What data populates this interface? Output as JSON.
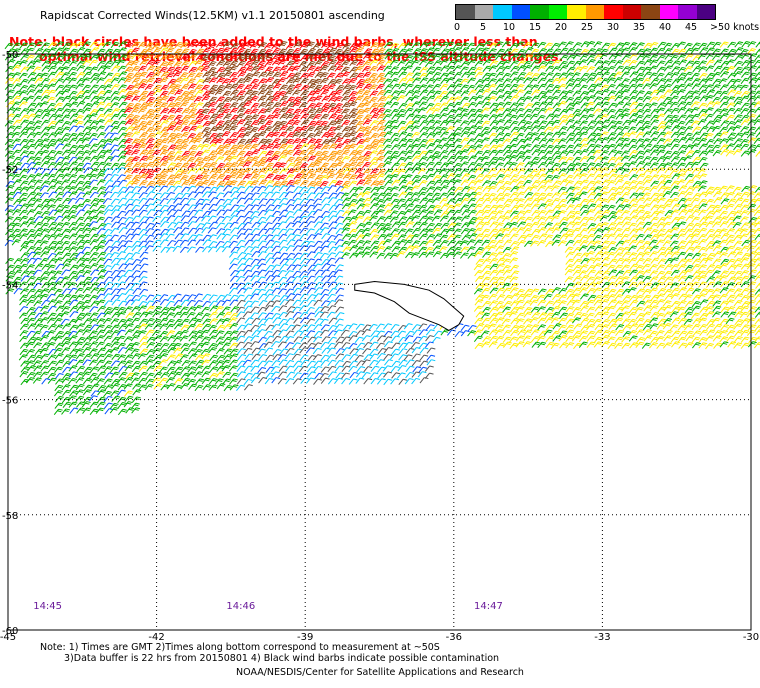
{
  "title": "Rapidscat Corrected Winds(12.5KM) v1.1 20150801 ascending",
  "note": {
    "line1": "Note: black circles have been added to the wind barbs, wherever less than",
    "line2": "optimal wind retrieval conditions are met due to the ISS altitude changes."
  },
  "legend": {
    "ticks": [
      "0",
      "5",
      "10",
      "15",
      "20",
      "25",
      "30",
      "35",
      "40",
      "45"
    ],
    "unit": ">50 knots",
    "colors": [
      "#555555",
      "#aaaaaa",
      "#00c8ff",
      "#0050ff",
      "#00b000",
      "#00ee00",
      "#ffee00",
      "#ff9900",
      "#ff0000",
      "#cc0000",
      "#8b4513",
      "#ff00ff",
      "#9400d3",
      "#4b0082"
    ]
  },
  "axes": {
    "lat_labels": [
      "-50",
      "-52",
      "-54",
      "-56",
      "-58",
      "-60"
    ],
    "lon_labels": [
      "-45",
      "-42",
      "-39",
      "-36",
      "-33",
      "-30"
    ]
  },
  "times": [
    "14:45",
    "14:46",
    "14:47"
  ],
  "footnote": {
    "line1": "Note: 1) Times are GMT 2)Times along bottom correspond to measurement at ~50S",
    "line2": "3)Data buffer is 22 hrs from 20150801 4) Black wind barbs indicate possible contamination"
  },
  "credit": "NOAA/NESDIS/Center for Satellite Applications and Research"
}
